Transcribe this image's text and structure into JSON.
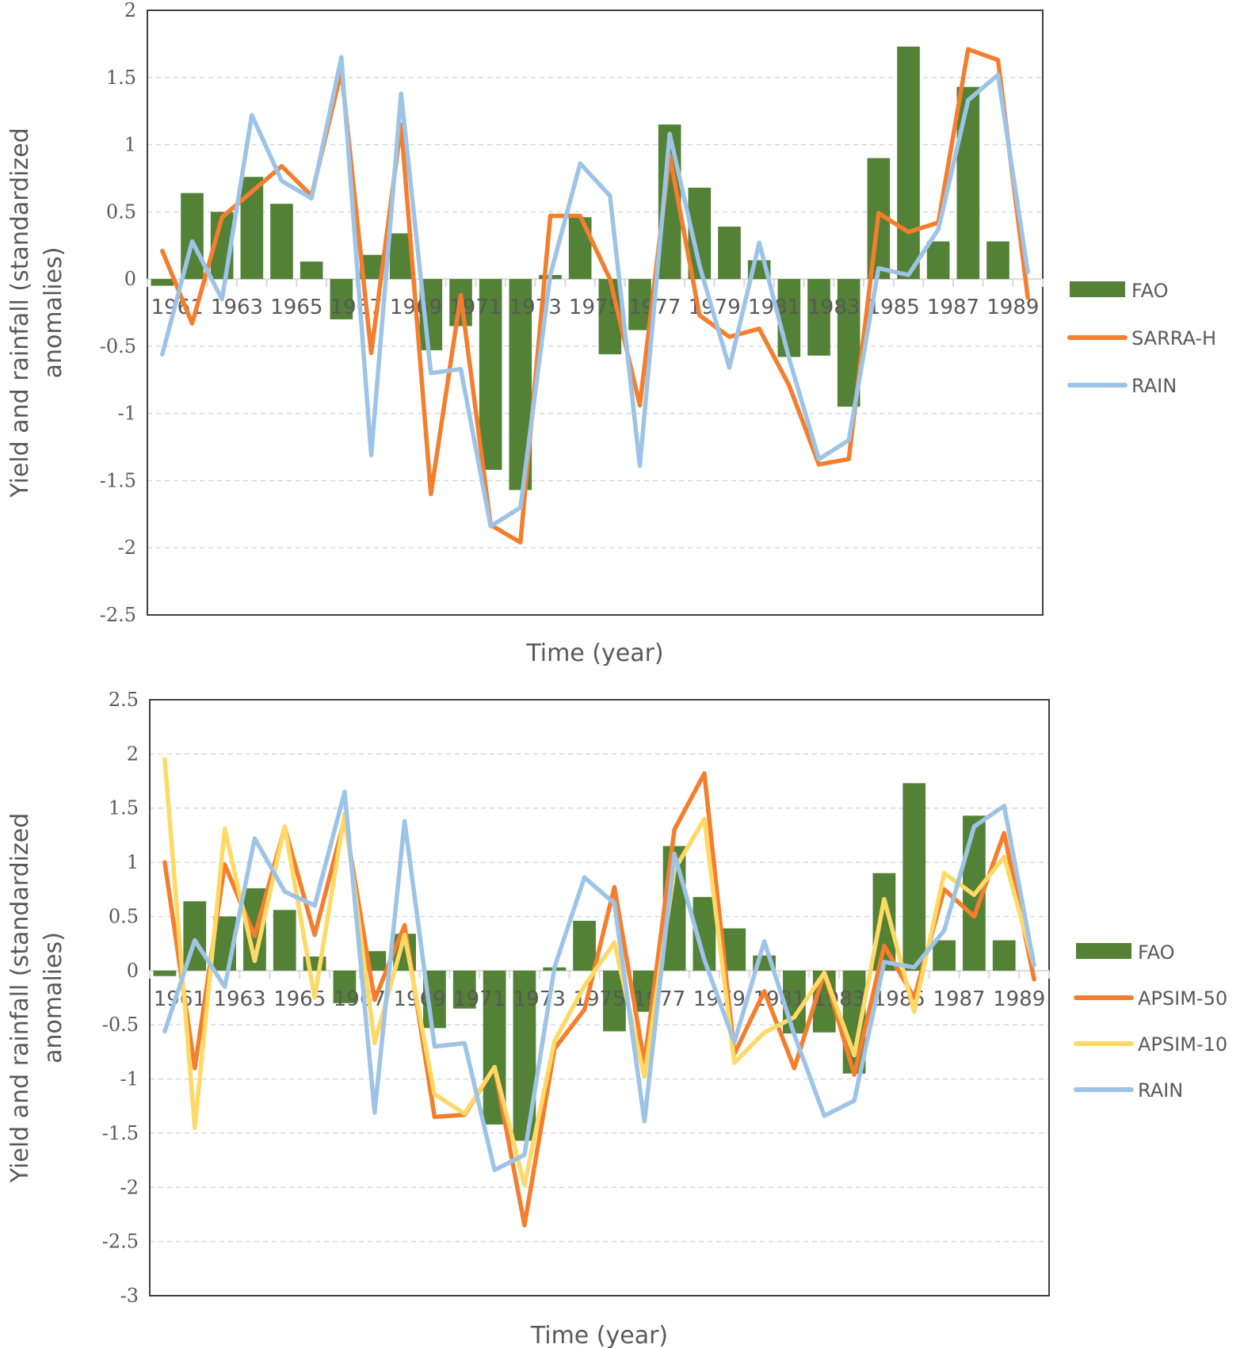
{
  "chart_data": [
    {
      "type": "bar+line",
      "title": "",
      "xlabel": "Time (year)",
      "ylabel": "Yield and rainfall (standardized anomalies)",
      "ylabel_lines": [
        "Yield and rainfall (standardized",
        "anomalies)"
      ],
      "ylim": [
        -2.5,
        2
      ],
      "yticks": [
        2,
        1.5,
        1,
        0.5,
        0,
        -0.5,
        -1,
        -1.5,
        -2,
        -2.5
      ],
      "ytick_labels": [
        "2",
        "1.5",
        "1",
        "0.5",
        "0",
        "-0.5",
        "-1",
        "-1.5",
        "-2",
        "-2.5"
      ],
      "grid": true,
      "legend_position": "right",
      "x": [
        1961,
        1962,
        1963,
        1964,
        1965,
        1966,
        1967,
        1968,
        1969,
        1970,
        1971,
        1972,
        1973,
        1974,
        1975,
        1976,
        1977,
        1978,
        1979,
        1980,
        1981,
        1982,
        1983,
        1984,
        1985,
        1986,
        1987,
        1988,
        1989,
        1990
      ],
      "xtick_labels": [
        "1961",
        "1963",
        "1965",
        "1967",
        "1969",
        "1971",
        "1973",
        "1975",
        "1977",
        "1979",
        "1981",
        "1983",
        "1985",
        "1987",
        "1989"
      ],
      "series": [
        {
          "name": "FAO",
          "kind": "bar",
          "color": "#538135",
          "values": [
            -0.05,
            0.64,
            0.5,
            0.76,
            0.56,
            0.13,
            -0.3,
            0.18,
            0.34,
            -0.53,
            -0.35,
            -1.42,
            -1.57,
            0.03,
            0.46,
            -0.56,
            -0.38,
            1.15,
            0.68,
            0.39,
            0.14,
            -0.58,
            -0.57,
            -0.95,
            0.9,
            1.73,
            0.28,
            1.43,
            0.28,
            0.0
          ]
        },
        {
          "name": "SARRA-H",
          "kind": "line",
          "color": "#f47e2d",
          "values": [
            0.21,
            -0.33,
            0.46,
            0.65,
            0.84,
            0.62,
            1.55,
            -0.55,
            1.15,
            -1.6,
            -0.12,
            -1.83,
            -1.96,
            0.47,
            0.47,
            0.0,
            -0.94,
            0.92,
            -0.27,
            -0.43,
            -0.37,
            -0.79,
            -1.38,
            -1.34,
            0.49,
            0.35,
            0.42,
            1.71,
            1.63,
            -0.14
          ]
        },
        {
          "name": "RAIN",
          "kind": "line",
          "color": "#9dc3e6",
          "values": [
            -0.56,
            0.28,
            -0.15,
            1.22,
            0.73,
            0.6,
            1.65,
            -1.31,
            1.38,
            -0.7,
            -0.67,
            -1.84,
            -1.7,
            0.03,
            0.86,
            0.62,
            -1.39,
            1.08,
            0.1,
            -0.66,
            0.27,
            -0.59,
            -1.34,
            -1.2,
            0.08,
            0.03,
            0.37,
            1.33,
            1.52,
            0.05
          ]
        }
      ]
    },
    {
      "type": "bar+line",
      "title": "",
      "xlabel": "Time (year)",
      "ylabel": "Yield and rainfall (standardized anomalies)",
      "ylabel_lines": [
        "Yield and rainfall (standardized",
        "anomalies)"
      ],
      "ylim": [
        -3,
        2.5
      ],
      "yticks": [
        2.5,
        2,
        1.5,
        1,
        0.5,
        0,
        -0.5,
        -1,
        -1.5,
        -2,
        -2.5,
        -3
      ],
      "ytick_labels": [
        "2.5",
        "2",
        "1.5",
        "1",
        "0.5",
        "0",
        "-0.5",
        "-1",
        "-1.5",
        "-2",
        "-2.5",
        "-3"
      ],
      "grid": true,
      "legend_position": "right",
      "x": [
        1961,
        1962,
        1963,
        1964,
        1965,
        1966,
        1967,
        1968,
        1969,
        1970,
        1971,
        1972,
        1973,
        1974,
        1975,
        1976,
        1977,
        1978,
        1979,
        1980,
        1981,
        1982,
        1983,
        1984,
        1985,
        1986,
        1987,
        1988,
        1989,
        1990
      ],
      "xtick_labels": [
        "1961",
        "1963",
        "1965",
        "1967",
        "1969",
        "1971",
        "1973",
        "1975",
        "1977",
        "1979",
        "1981",
        "1983",
        "1985",
        "1987",
        "1989"
      ],
      "series": [
        {
          "name": "FAO",
          "kind": "bar",
          "color": "#538135",
          "values": [
            -0.05,
            0.64,
            0.5,
            0.76,
            0.56,
            0.13,
            -0.3,
            0.18,
            0.34,
            -0.53,
            -0.35,
            -1.42,
            -1.57,
            0.03,
            0.46,
            -0.56,
            -0.38,
            1.15,
            0.68,
            0.39,
            0.14,
            -0.58,
            -0.57,
            -0.95,
            0.9,
            1.73,
            0.28,
            1.43,
            0.28,
            0.0
          ]
        },
        {
          "name": "APSIM-50",
          "kind": "line",
          "color": "#f47e2d",
          "values": [
            1.0,
            -0.9,
            0.98,
            0.32,
            1.32,
            0.33,
            1.4,
            -0.27,
            0.42,
            -1.35,
            -1.33,
            -0.89,
            -2.35,
            -0.72,
            -0.36,
            0.77,
            -0.85,
            1.3,
            1.82,
            -0.77,
            -0.19,
            -0.9,
            -0.02,
            -0.96,
            0.23,
            -0.25,
            0.75,
            0.5,
            1.27,
            -0.08
          ]
        },
        {
          "name": "APSIM-10",
          "kind": "line",
          "color": "#ffd966",
          "values": [
            1.95,
            -1.45,
            1.31,
            0.09,
            1.33,
            -0.25,
            1.45,
            -0.67,
            0.33,
            -1.14,
            -1.32,
            -0.89,
            -1.98,
            -0.65,
            -0.14,
            0.26,
            -0.98,
            0.93,
            1.4,
            -0.85,
            -0.57,
            -0.43,
            -0.02,
            -0.78,
            0.66,
            -0.38,
            0.9,
            0.7,
            1.05,
            0.05
          ]
        },
        {
          "name": "RAIN",
          "kind": "line",
          "color": "#9dc3e6",
          "values": [
            -0.56,
            0.28,
            -0.15,
            1.22,
            0.73,
            0.6,
            1.65,
            -1.31,
            1.38,
            -0.7,
            -0.67,
            -1.84,
            -1.7,
            0.03,
            0.86,
            0.62,
            -1.39,
            1.08,
            0.1,
            -0.66,
            0.27,
            -0.59,
            -1.34,
            -1.2,
            0.08,
            0.03,
            0.37,
            1.33,
            1.52,
            0.05
          ]
        }
      ]
    }
  ]
}
